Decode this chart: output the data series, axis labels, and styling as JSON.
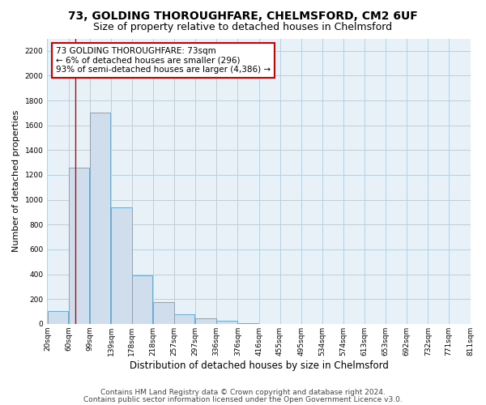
{
  "title1": "73, GOLDING THOROUGHFARE, CHELMSFORD, CM2 6UF",
  "title2": "Size of property relative to detached houses in Chelmsford",
  "xlabel": "Distribution of detached houses by size in Chelmsford",
  "ylabel": "Number of detached properties",
  "footnote1": "Contains HM Land Registry data © Crown copyright and database right 2024.",
  "footnote2": "Contains public sector information licensed under the Open Government Licence v3.0.",
  "annotation_line1": "73 GOLDING THOROUGHFARE: 73sqm",
  "annotation_line2": "← 6% of detached houses are smaller (296)",
  "annotation_line3": "93% of semi-detached houses are larger (4,386) →",
  "bar_left_edges": [
    20,
    60,
    99,
    139,
    178,
    218,
    257,
    297,
    336,
    376,
    416,
    455,
    495,
    534,
    574,
    613,
    653,
    692,
    732,
    771
  ],
  "bar_heights": [
    100,
    1260,
    1700,
    940,
    390,
    175,
    80,
    45,
    25,
    4,
    0,
    0,
    0,
    0,
    0,
    0,
    0,
    0,
    0,
    0
  ],
  "tick_labels": [
    "20sqm",
    "60sqm",
    "99sqm",
    "139sqm",
    "178sqm",
    "218sqm",
    "257sqm",
    "297sqm",
    "336sqm",
    "376sqm",
    "416sqm",
    "455sqm",
    "495sqm",
    "534sqm",
    "574sqm",
    "613sqm",
    "653sqm",
    "692sqm",
    "732sqm",
    "771sqm",
    "811sqm"
  ],
  "tick_positions": [
    20,
    60,
    99,
    139,
    178,
    218,
    257,
    297,
    336,
    376,
    416,
    455,
    495,
    534,
    574,
    613,
    653,
    692,
    732,
    771,
    811
  ],
  "bar_color": "#cfdded",
  "bar_edge_color": "#6aacd4",
  "red_line_x": 73,
  "xlim": [
    20,
    811
  ],
  "ylim": [
    0,
    2300
  ],
  "yticks": [
    0,
    200,
    400,
    600,
    800,
    1000,
    1200,
    1400,
    1600,
    1800,
    2000,
    2200
  ],
  "grid_color": "#b8cfe0",
  "bg_color": "#e8f0f8",
  "annotation_box_color": "#cc0000",
  "title1_fontsize": 10,
  "title2_fontsize": 9,
  "xlabel_fontsize": 8.5,
  "ylabel_fontsize": 8,
  "tick_fontsize": 6.5,
  "annotation_fontsize": 7.5,
  "footnote_fontsize": 6.5
}
